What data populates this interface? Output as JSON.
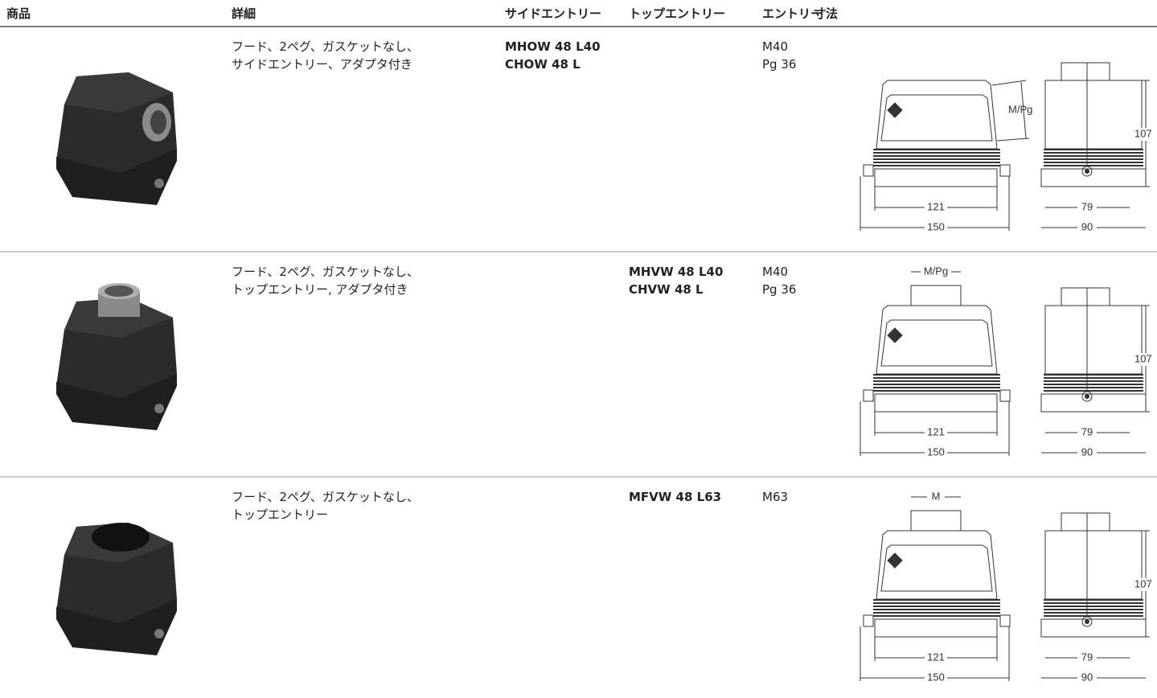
{
  "table": {
    "headers": [
      "商品",
      "詳細",
      "サイドエントリー",
      "トップエントリー",
      "エントリー",
      "寸法"
    ],
    "rows": [
      {
        "details": [
          "フード、2ペグ、ガスケットなし、",
          "サイドエントリー、アダプタ付き"
        ],
        "side_entry": [
          "MHOW 48 L40",
          "CHOW 48 L"
        ],
        "entry": [
          "M40",
          "Pg 36"
        ],
        "dimensions": {
          "entry_label": "M/Pg",
          "height": "107",
          "inner_width": "121",
          "outer_width": "150",
          "inner_depth": "79",
          "outer_depth": "90"
        }
      },
      {
        "details": [
          "フード、2ペグ、ガスケットなし、",
          "トップエントリー, アダプタ付き"
        ],
        "top_entry": [
          "MHVW 48 L40",
          "CHVW 48 L"
        ],
        "entry": [
          "M40",
          "Pg 36"
        ],
        "dimensions": {
          "entry_label": "M/Pg",
          "height": "107",
          "inner_width": "121",
          "outer_width": "150",
          "inner_depth": "79",
          "outer_depth": "90"
        }
      },
      {
        "details": [
          "フード、2ペグ、ガスケットなし、",
          "トップエントリー"
        ],
        "top_entry": [
          "MFVW 48 L63"
        ],
        "entry": [
          "M63"
        ],
        "dimensions": {
          "entry_label": "M",
          "height": "107",
          "inner_width": "121",
          "outer_width": "150",
          "inner_depth": "79",
          "outer_depth": "90"
        }
      }
    ]
  }
}
